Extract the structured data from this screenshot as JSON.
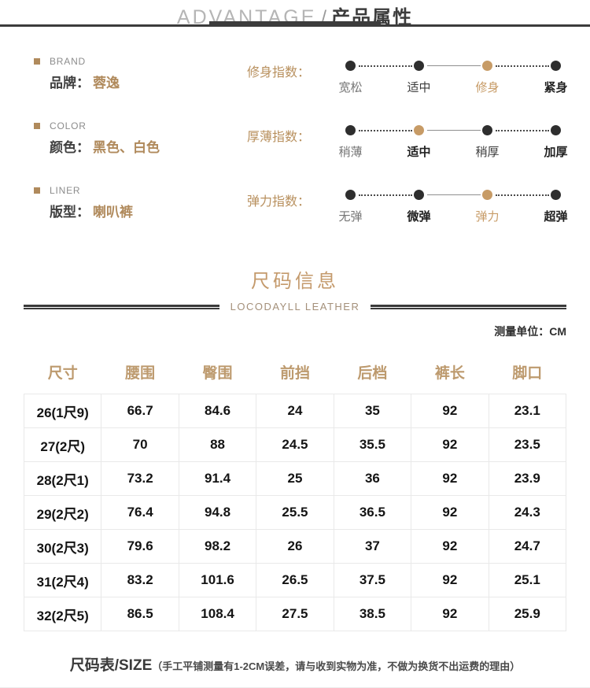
{
  "header": {
    "title_en": "ADVANTAGE",
    "separator": "/",
    "title_cn": "产品属性"
  },
  "attributes": {
    "items": [
      {
        "tag_en": "BRAND",
        "label": "品牌：",
        "value": "蓉逸"
      },
      {
        "tag_en": "COLOR",
        "label": "颜色：",
        "value": "黑色、白色"
      },
      {
        "tag_en": "LINER",
        "label": "版型：",
        "value": "喇叭裤"
      }
    ],
    "scales": [
      {
        "name": "修身指数：",
        "options": [
          {
            "label": "宽松",
            "dot": "dark",
            "style": "muted",
            "highlighted": false
          },
          {
            "label": "适中",
            "dot": "dark",
            "style": "normal",
            "highlighted": false
          },
          {
            "label": "修身",
            "dot": "tan",
            "style": "tan",
            "highlighted": true
          },
          {
            "label": "紧身",
            "dot": "dark",
            "style": "bold",
            "highlighted": false
          }
        ]
      },
      {
        "name": "厚薄指数：",
        "options": [
          {
            "label": "稍薄",
            "dot": "dark",
            "style": "muted",
            "highlighted": false
          },
          {
            "label": "适中",
            "dot": "tan",
            "style": "bold",
            "highlighted": true
          },
          {
            "label": "稍厚",
            "dot": "dark",
            "style": "normal",
            "highlighted": false
          },
          {
            "label": "加厚",
            "dot": "dark",
            "style": "bold",
            "highlighted": false
          }
        ]
      },
      {
        "name": "弹力指数：",
        "options": [
          {
            "label": "无弹",
            "dot": "dark",
            "style": "muted",
            "highlighted": false
          },
          {
            "label": "微弹",
            "dot": "dark",
            "style": "bold",
            "highlighted": false
          },
          {
            "label": "弹力",
            "dot": "tan",
            "style": "tan",
            "highlighted": true
          },
          {
            "label": "超弹",
            "dot": "dark",
            "style": "bold",
            "highlighted": false
          }
        ]
      }
    ]
  },
  "size_section": {
    "title": "尺码信息",
    "subtitle": "LOCODAYLL LEATHER",
    "unit_note": "测量单位：CM",
    "table": {
      "headers": [
        "尺寸",
        "腰围",
        "臀围",
        "前挡",
        "后档",
        "裤长",
        "脚口"
      ],
      "rows": [
        [
          "26(1尺9)",
          "66.7",
          "84.6",
          "24",
          "35",
          "92",
          "23.1"
        ],
        [
          "27(2尺)",
          "70",
          "88",
          "24.5",
          "35.5",
          "92",
          "23.5"
        ],
        [
          "28(2尺1)",
          "73.2",
          "91.4",
          "25",
          "36",
          "92",
          "23.9"
        ],
        [
          "29(2尺2)",
          "76.4",
          "94.8",
          "25.5",
          "36.5",
          "92",
          "24.3"
        ],
        [
          "30(2尺3)",
          "79.6",
          "98.2",
          "26",
          "37",
          "92",
          "24.7"
        ],
        [
          "31(2尺4)",
          "83.2",
          "101.6",
          "26.5",
          "37.5",
          "92",
          "25.1"
        ],
        [
          "32(2尺5)",
          "86.5",
          "108.4",
          "27.5",
          "38.5",
          "92",
          "25.9"
        ]
      ]
    },
    "footnote_title": "尺码表/SIZE",
    "footnote_detail": "（手工平铺测量有1-2CM误差，请与收到实物为准，不做为换货不出运费的理由）"
  },
  "colors": {
    "accent_tan": "#b98e5e",
    "highlight_dot": "#c79b66",
    "dark_line": "#3c3c3c",
    "table_border": "#e9e9e9"
  }
}
